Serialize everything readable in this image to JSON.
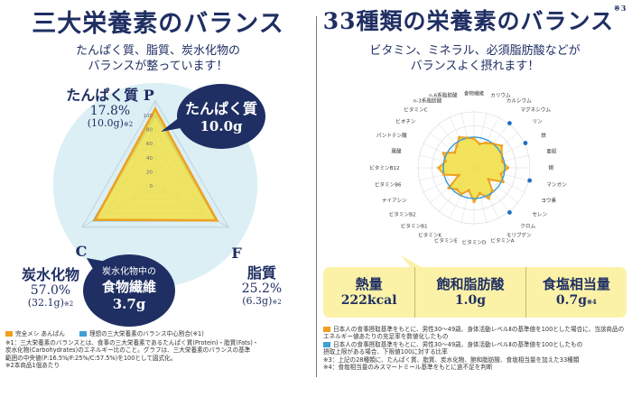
{
  "left": {
    "title": "三大栄養素のバランス",
    "subtitle": [
      "たんぱく質、脂質、炭水化物の",
      "バランスが整っています！"
    ],
    "protein": {
      "name": "たんぱく質",
      "letter": "P",
      "pct": "17.8%",
      "grams": "(10.0g)",
      "mark": "※2"
    },
    "fat": {
      "name": "脂質",
      "letter": "F",
      "pct": "25.2%",
      "grams": "(6.3g)",
      "mark": "※2"
    },
    "carbs": {
      "name": "炭水化物",
      "letter": "C",
      "pct": "57.0%",
      "grams": "(32.1g)",
      "mark": "※2"
    },
    "bubble_protein": {
      "line1": "たんぱく質",
      "line2": "10.0g"
    },
    "bubble_fiber": {
      "line1": "炭水化物中の",
      "line2": "食物繊維",
      "line3": "3.7g"
    },
    "scale_labels": [
      "100",
      "80",
      "60",
      "40",
      "20",
      "0"
    ],
    "legend": [
      {
        "label": "完全メシ あんぱん",
        "color": "#f0a01e"
      },
      {
        "label": "理想の三大栄養素のバランス中心割合(※1)",
        "color": "#3d9fd6"
      }
    ],
    "notes": [
      "※1：三大栄養素のバランスとは、食事の三大栄養素であるたんぱく質(Protein)・脂質(Fats)・",
      "炭水化物(Carbohydrates)のエネルギー比のこと。グラフは、三大栄養素のバランスの基準",
      "範囲の中央値(P:16.5%/F:25%/C:57.5%)を100として図式化。",
      "※2本商品1個あたり"
    ],
    "chart_data": {
      "type": "radar",
      "axes": [
        "P",
        "F",
        "C"
      ],
      "series": [
        {
          "name": "完全メシ あんぱん",
          "values": [
            108,
            101,
            99
          ],
          "color": "#f0a01e"
        },
        {
          "name": "理想の三大栄養素のバランス中心割合(※1)",
          "values": [
            100,
            100,
            100
          ],
          "color": "#3d9fd6"
        }
      ],
      "range": [
        0,
        100
      ],
      "fill": "#f2e04a"
    }
  },
  "right": {
    "title": "33種類の栄養素のバランス",
    "title_mark": "※3",
    "subtitle": [
      "ビタミン、ミネラル、必須脂肪酸などが",
      "バランスよく摂れます！"
    ],
    "axis_labels": [
      "食物繊維",
      "カリウム",
      "カルシウム",
      "マグネシウム",
      "リン",
      "鉄",
      "亜鉛",
      "銅",
      "マンガン",
      "ヨウ素",
      "セレン",
      "クロム",
      "モリブデン",
      "ビタミンA",
      "ビタミンD",
      "ビタミンE",
      "ビタミンK",
      "ビタミンB1",
      "ビタミンB2",
      "ナイアシン",
      "ビタミンB6",
      "ビタミンB12",
      "葉酸",
      "パントテン酸",
      "ビオチン",
      "ビタミンC",
      "n-3系脂肪酸",
      "n-6系脂肪酸"
    ],
    "stats": [
      {
        "label": "熱量",
        "value": "222kcal",
        "mark": ""
      },
      {
        "label": "飽和脂肪酸",
        "value": "1.0g",
        "mark": ""
      },
      {
        "label": "食塩相当量",
        "value": "0.7g",
        "mark": "※4"
      }
    ],
    "legend": [
      {
        "label": "日本人の食事摂取基準をもとに、男性30〜49歳、身体活動レベルⅡの基準値を100とした場合に、当該商品のエネルギー値あたりの充足率を数値化したもの",
        "color": "#f0a01e"
      },
      {
        "label": "日本人の食事摂取基準をもとに、男性30〜49歳、身体活動レベルⅡの基準値を100としたもの",
        "color": "#3d9fd6"
      }
    ],
    "notes": [
      "摂取上限がある場合、下限値100に対する比率",
      "※3：上記の28種類に、たんぱく質、脂質、炭水化物、飽和脂肪酸、食塩相当量を加えた33種類",
      "※4：食塩相当量のみスマートミール基準をもとに過不足を判断"
    ],
    "chart_data": {
      "type": "radar",
      "categories": [
        "食物繊維",
        "カリウム",
        "カルシウム",
        "マグネシウム",
        "リン",
        "鉄",
        "亜鉛",
        "銅",
        "マンガン",
        "ヨウ素",
        "セレン",
        "クロム",
        "モリブデン",
        "ビタミンA",
        "ビタミンD",
        "ビタミンE",
        "ビタミンK",
        "ビタミンB1",
        "ビタミンB2",
        "ナイアシン",
        "ビタミンB6",
        "ビタミンB12",
        "葉酸",
        "パントテン酸",
        "ビオチン",
        "ビタミンC",
        "n-3系脂肪酸",
        "n-6系脂肪酸"
      ],
      "series": [
        {
          "name": "完全メシ あんぱん",
          "values": [
            95,
            80,
            90,
            100,
            115,
            100,
            95,
            110,
            90,
            105,
            60,
            95,
            110,
            85,
            110,
            75,
            95,
            90,
            105,
            55,
            100,
            115,
            95,
            110,
            80,
            90,
            110,
            100
          ],
          "color": "#f0a01e"
        }
      ],
      "range": [
        0,
        200
      ],
      "fill": "#f2e04a",
      "reference_value": 100,
      "reference_color": "#3d9fd6"
    }
  }
}
